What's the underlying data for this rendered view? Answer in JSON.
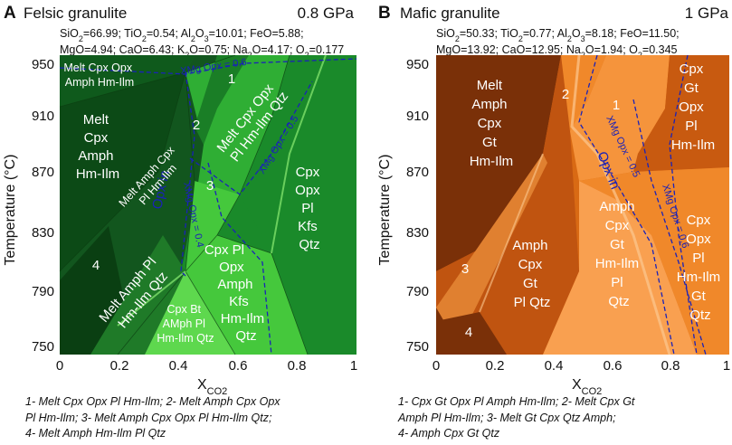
{
  "colors": {
    "felsic_bg": "#1a8a2a",
    "felsic_dark": "#0c4a16",
    "felsic_mid": "#237f2e",
    "felsic_light": "#45c83c",
    "felsic_lighter": "#5ed84e",
    "mafic_bg": "#d96a14",
    "mafic_dark": "#7a3008",
    "mafic_mid": "#c05410",
    "mafic_light": "#f5943c",
    "mafic_lighter": "#fcb068",
    "contour": "#1a22b8"
  },
  "chart_data": [
    {
      "type": "phase-diagram",
      "panel_letter": "A",
      "title": "Felsic granulite",
      "pressure": "0.8 GPa",
      "composition_line1": "SiO2=66.99; TiO2=0.54; Al2O3=10.01; FeO=5.88;",
      "composition_line2": "MgO=4.94; CaO=6.43; K2O=0.75; Na2O=4.17; O2=0.177",
      "xlabel": "XCO2",
      "ylabel": "Temperature (°C)",
      "xlim": [
        0,
        1
      ],
      "ylim": [
        750,
        960
      ],
      "xticks": [
        "0",
        "0.2",
        "0.4",
        "0.6",
        "0.8",
        "1"
      ],
      "yticks": [
        "950",
        "910",
        "870",
        "830",
        "790",
        "750"
      ],
      "fields": [
        {
          "label": "Melt Cpx Opx Amph Hm-Ilm",
          "lines": [
            "Melt Cpx Opx",
            "Amph Hm-Ilm"
          ]
        },
        {
          "label": "Melt Cpx Amph Hm-Ilm",
          "lines": [
            "Melt",
            "Cpx",
            "Amph",
            "Hm-Ilm"
          ]
        },
        {
          "label": "Melt Amph Cpx Pl Hm-Ilm",
          "lines": [
            "Melt Amph Cpx",
            "Pl Hm-Ilm"
          ]
        },
        {
          "label": "Melt Cpx Opx Pl Hm-Ilm Qtz",
          "lines": [
            "Melt Cpx Opx",
            "Pl Hm-Ilm Qtz"
          ]
        },
        {
          "label": "Cpx Opx Pl Kfs Qtz",
          "lines": [
            "Cpx",
            "Opx",
            "Pl",
            "Kfs",
            "Qtz"
          ]
        },
        {
          "label": "Melt Amph Pl Hm-Ilm Qtz",
          "lines": [
            "Melt Amph Pl",
            "Hm-Ilm Qtz"
          ]
        },
        {
          "label": "Cpx Pl Opx Amph Kfs Hm-Ilm Qtz",
          "lines": [
            "Cpx Pl",
            "Opx",
            "Amph",
            "Kfs",
            "Hm-Ilm",
            "Qtz"
          ]
        },
        {
          "label": "Cpx Bt AMph Pl Hm-Ilm Qtz",
          "lines": [
            "Cpx Bt",
            "AMph Pl",
            "Hm-Ilm Qtz"
          ]
        }
      ],
      "numbered_fields": [
        "1",
        "2",
        "3",
        "4"
      ],
      "contours": [
        {
          "label": "XMg Opx = 0.6"
        },
        {
          "label": "XMg Opx = 0.5"
        },
        {
          "label": "XMg Opx = 0.4"
        }
      ],
      "opx_in_label": "Opx in",
      "legend_lines": [
        "1- Melt Cpx Opx Pl Hm-Ilm; 2- Melt Amph Cpx Opx",
        "Pl Hm-Ilm; 3- Melt Amph Cpx Opx Pl Hm-Ilm Qtz;",
        "4- Melt Amph Hm-Ilm Pl Qtz"
      ]
    },
    {
      "type": "phase-diagram",
      "panel_letter": "B",
      "title": "Mafic granulite",
      "pressure": "1 GPa",
      "composition_line1": "SiO2=50.33; TiO2=0.77; Al2O3=8.18; FeO=11.50;",
      "composition_line2": "MgO=13.92; CaO=12.95; Na2O=1.94; O2=0.345",
      "xlabel": "XCO2",
      "ylabel": "Temperature (°C)",
      "xlim": [
        0,
        1
      ],
      "ylim": [
        750,
        960
      ],
      "xticks": [
        "0",
        "0.2",
        "0.4",
        "0.6",
        "0.8",
        "1"
      ],
      "yticks": [
        "950",
        "910",
        "870",
        "830",
        "790",
        "750"
      ],
      "fields": [
        {
          "label": "Melt Amph Cpx Gt Hm-Ilm",
          "lines": [
            "Melt",
            "Amph",
            "Cpx",
            "Gt",
            "Hm-Ilm"
          ]
        },
        {
          "label": "Cpx Gt Opx Pl Hm-Ilm",
          "lines": [
            "Cpx",
            "Gt",
            "Opx",
            "Pl",
            "Hm-Ilm"
          ]
        },
        {
          "label": "Amph Cpx Gt Pl Qtz",
          "lines": [
            "Amph",
            "Cpx",
            "Gt",
            "Pl Qtz"
          ]
        },
        {
          "label": "Amph Cpx Gt Hm-Ilm Pl Qtz",
          "lines": [
            "Amph",
            "Cpx",
            "Gt",
            "Hm-Ilm",
            "Pl",
            "Qtz"
          ]
        },
        {
          "label": "Cpx Opx Pl Hm-Ilm Gt Qtz",
          "lines": [
            "Cpx",
            "Opx",
            "Pl",
            "Hm-Ilm",
            "Gt",
            "Qtz"
          ]
        }
      ],
      "numbered_fields": [
        "1",
        "2",
        "3",
        "4"
      ],
      "contours": [
        {
          "label": "XMg Opx = 0.5"
        },
        {
          "label": "XMg Opx = 0.6"
        }
      ],
      "opx_in_label": "Opx in",
      "legend_lines": [
        "1- Cpx Gt Opx Pl Amph Hm-Ilm; 2- Melt Cpx Gt",
        "Amph Pl Hm-Ilm; 3- Melt Gt Cpx Qtz Amph;",
        "4- Amph Cpx Gt Qtz"
      ]
    }
  ]
}
